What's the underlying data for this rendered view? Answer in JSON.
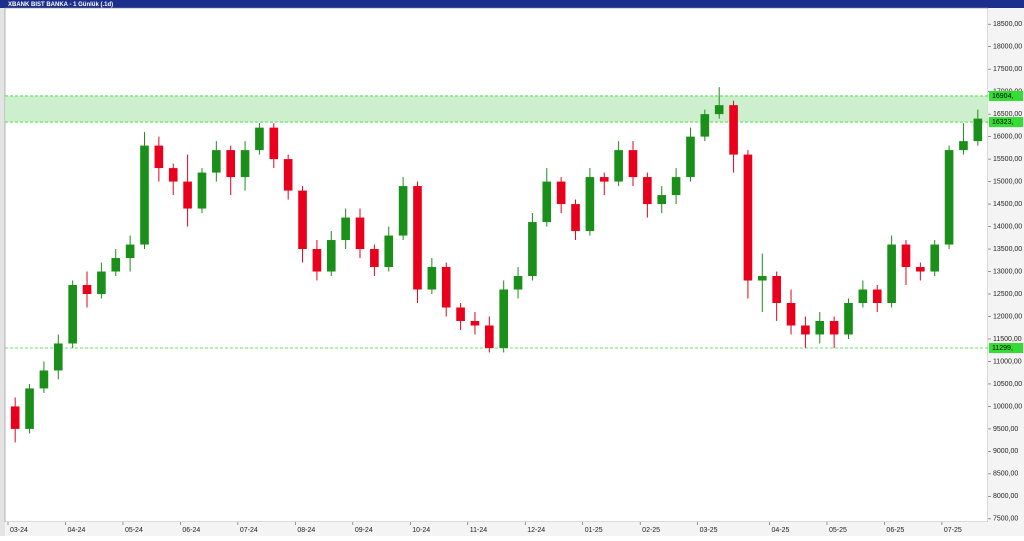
{
  "chart_data": {
    "type": "candlestick",
    "title": "XBANK BIST BANKA - 1 Günlük (.1d)",
    "up_color": "#1a8f1a",
    "down_color": "#e8001c",
    "ylim": [
      7430,
      18860
    ],
    "yticks": [
      {
        "value": 7500,
        "label": "7500,00"
      },
      {
        "value": 8000,
        "label": "8000,00"
      },
      {
        "value": 8500,
        "label": "8500,00"
      },
      {
        "value": 9000,
        "label": "9000,00"
      },
      {
        "value": 9500,
        "label": "9500,00"
      },
      {
        "value": 10000,
        "label": "10000,00"
      },
      {
        "value": 10500,
        "label": "10500,00"
      },
      {
        "value": 11000,
        "label": "11000,00"
      },
      {
        "value": 11500,
        "label": "11500,00"
      },
      {
        "value": 12000,
        "label": "12000,00"
      },
      {
        "value": 12500,
        "label": "12500,00"
      },
      {
        "value": 13000,
        "label": "13000,00"
      },
      {
        "value": 13500,
        "label": "13500,00"
      },
      {
        "value": 14000,
        "label": "14000,00"
      },
      {
        "value": 14500,
        "label": "14500,00"
      },
      {
        "value": 15000,
        "label": "15000,00"
      },
      {
        "value": 15500,
        "label": "15500,00"
      },
      {
        "value": 16000,
        "label": "16000,00"
      },
      {
        "value": 16500,
        "label": "16500,00"
      },
      {
        "value": 17000,
        "label": "17000,00"
      },
      {
        "value": 17500,
        "label": "17500,00"
      },
      {
        "value": 18000,
        "label": "18000,00"
      },
      {
        "value": 18500,
        "label": "18500,00"
      }
    ],
    "levels": [
      {
        "value": 16904,
        "label": "16904,"
      },
      {
        "value": 16323,
        "label": "16323,"
      },
      {
        "value": 11299,
        "label": "11299,"
      }
    ],
    "zone_color": "#c6ecc6",
    "level_color": "#33dd33",
    "months": [
      {
        "label": "03-24",
        "candles": [
          [
            10000,
            10200,
            9200,
            9500
          ],
          [
            9500,
            10500,
            9400,
            10400
          ],
          [
            10400,
            11000,
            10300,
            10800
          ],
          [
            10800,
            11600,
            10600,
            11400
          ]
        ]
      },
      {
        "label": "04-24",
        "candles": [
          [
            11400,
            12800,
            11300,
            12700
          ],
          [
            12700,
            13000,
            12200,
            12500
          ],
          [
            12500,
            13200,
            12400,
            13000
          ],
          [
            13000,
            13500,
            12900,
            13300
          ]
        ]
      },
      {
        "label": "05-24",
        "candles": [
          [
            13300,
            13800,
            13000,
            13600
          ],
          [
            13600,
            16100,
            13500,
            15800
          ],
          [
            15800,
            16000,
            15000,
            15300
          ],
          [
            15300,
            15400,
            14700,
            15000
          ]
        ]
      },
      {
        "label": "06-24",
        "candles": [
          [
            15000,
            15600,
            14000,
            14400
          ],
          [
            14400,
            15300,
            14300,
            15200
          ],
          [
            15200,
            15900,
            15000,
            15700
          ],
          [
            15700,
            15800,
            14700,
            15100
          ]
        ]
      },
      {
        "label": "07-24",
        "candles": [
          [
            15100,
            15900,
            14800,
            15700
          ],
          [
            15700,
            16300,
            15600,
            16200
          ],
          [
            16200,
            16300,
            15300,
            15500
          ],
          [
            15500,
            15600,
            14600,
            14800
          ]
        ]
      },
      {
        "label": "08-24",
        "candles": [
          [
            14800,
            14900,
            13200,
            13500
          ],
          [
            13500,
            13700,
            12800,
            13000
          ],
          [
            13000,
            13900,
            12900,
            13700
          ],
          [
            13700,
            14400,
            13500,
            14200
          ]
        ]
      },
      {
        "label": "09-24",
        "candles": [
          [
            14200,
            14400,
            13300,
            13500
          ],
          [
            13500,
            13600,
            12900,
            13100
          ],
          [
            13100,
            14000,
            13000,
            13800
          ],
          [
            13800,
            15100,
            13700,
            14900
          ]
        ]
      },
      {
        "label": "10-24",
        "candles": [
          [
            14900,
            15000,
            12300,
            12600
          ],
          [
            12600,
            13300,
            12500,
            13100
          ],
          [
            13100,
            13200,
            12000,
            12200
          ],
          [
            12200,
            12300,
            11700,
            11900
          ]
        ]
      },
      {
        "label": "11-24",
        "candles": [
          [
            11900,
            12100,
            11600,
            11800
          ],
          [
            11800,
            12000,
            11200,
            11300
          ],
          [
            11300,
            12800,
            11200,
            12600
          ],
          [
            12600,
            13100,
            12400,
            12900
          ]
        ]
      },
      {
        "label": "12-24",
        "candles": [
          [
            12900,
            14300,
            12800,
            14100
          ],
          [
            14100,
            15300,
            14000,
            15000
          ],
          [
            15000,
            15100,
            14300,
            14500
          ],
          [
            14500,
            14600,
            13700,
            13900
          ]
        ]
      },
      {
        "label": "01-25",
        "candles": [
          [
            13900,
            15300,
            13800,
            15100
          ],
          [
            15100,
            15200,
            14700,
            15000
          ],
          [
            15000,
            15900,
            14900,
            15700
          ],
          [
            15700,
            15900,
            14900,
            15100
          ]
        ]
      },
      {
        "label": "02-25",
        "candles": [
          [
            15100,
            15200,
            14200,
            14500
          ],
          [
            14500,
            14900,
            14300,
            14700
          ],
          [
            14700,
            15300,
            14500,
            15100
          ],
          [
            15100,
            16200,
            15000,
            16000
          ]
        ]
      },
      {
        "label": "03-25",
        "candles": [
          [
            16000,
            16600,
            15900,
            16500
          ],
          [
            16500,
            17100,
            16400,
            16700
          ],
          [
            16700,
            16800,
            15200,
            15600
          ],
          [
            15600,
            15700,
            12400,
            12800
          ],
          [
            12800,
            13400,
            12100,
            12900
          ]
        ]
      },
      {
        "label": "04-25",
        "candles": [
          [
            12900,
            13000,
            11900,
            12300
          ],
          [
            12300,
            12600,
            11600,
            11800
          ],
          [
            11800,
            12000,
            11300,
            11600
          ],
          [
            11600,
            12100,
            11400,
            11900
          ]
        ]
      },
      {
        "label": "05-25",
        "candles": [
          [
            11900,
            12000,
            11300,
            11600
          ],
          [
            11600,
            12400,
            11500,
            12300
          ],
          [
            12300,
            12800,
            12200,
            12600
          ],
          [
            12600,
            12700,
            12100,
            12300
          ]
        ]
      },
      {
        "label": "06-25",
        "candles": [
          [
            12300,
            13800,
            12200,
            13600
          ],
          [
            13600,
            13700,
            12700,
            13100
          ],
          [
            13100,
            13200,
            12800,
            13000
          ],
          [
            13000,
            13700,
            12900,
            13600
          ]
        ]
      },
      {
        "label": "07-25",
        "candles": [
          [
            13600,
            15800,
            13500,
            15700
          ],
          [
            15700,
            16300,
            15600,
            15900
          ],
          [
            15900,
            16600,
            15800,
            16400
          ]
        ]
      }
    ]
  }
}
